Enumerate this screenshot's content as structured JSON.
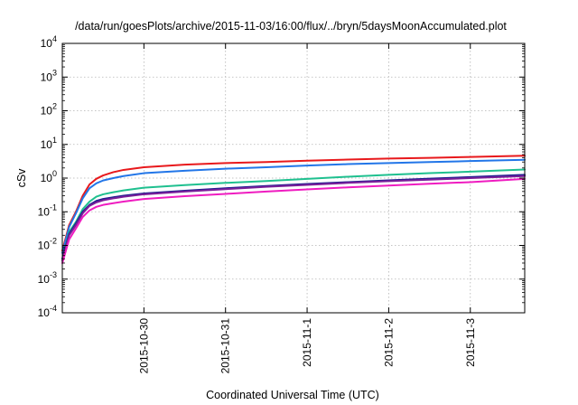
{
  "chart_data": {
    "type": "line",
    "title": "/data/run/goesPlots/archive/2015-11-03/16:00/flux/../bryn/5daysMoonAccumulated.plot",
    "xlabel": "Coordinated Universal Time (UTC)",
    "ylabel": "cSv",
    "y_scale": "log",
    "ylim": [
      0.0001,
      10000
    ],
    "xlim": [
      "2015-10-29 00:00",
      "2015-11-03 16:00"
    ],
    "grid": true,
    "legend": "none",
    "x_ticks": [
      "2015-10-30",
      "2015-10-31",
      "2015-11-1",
      "2015-11-2",
      "2015-11-3"
    ],
    "y_ticks": [
      {
        "value": 0.0001,
        "base": "10",
        "exp": "-4"
      },
      {
        "value": 0.001,
        "base": "10",
        "exp": "-3"
      },
      {
        "value": 0.01,
        "base": "10",
        "exp": "-2"
      },
      {
        "value": 0.1,
        "base": "10",
        "exp": "-1"
      },
      {
        "value": 1,
        "base": "10",
        "exp": "0"
      },
      {
        "value": 10,
        "base": "10",
        "exp": "1"
      },
      {
        "value": 100,
        "base": "10",
        "exp": "2"
      },
      {
        "value": 1000,
        "base": "10",
        "exp": "3"
      },
      {
        "value": 10000,
        "base": "10",
        "exp": "4"
      }
    ],
    "x": [
      "2015-10-29 00:00",
      "2015-10-29 02:00",
      "2015-10-29 04:00",
      "2015-10-29 06:00",
      "2015-10-29 08:00",
      "2015-10-29 10:00",
      "2015-10-29 12:00",
      "2015-10-29 15:00",
      "2015-10-29 18:00",
      "2015-10-30 00:00",
      "2015-10-30 12:00",
      "2015-10-31 00:00",
      "2015-10-31 12:00",
      "2015-11-01 00:00",
      "2015-11-01 12:00",
      "2015-11-02 00:00",
      "2015-11-02 12:00",
      "2015-11-03 00:00",
      "2015-11-03 16:00"
    ],
    "series": [
      {
        "color": "#e8191c",
        "values": [
          0.007,
          0.04,
          0.1,
          0.3,
          0.65,
          0.95,
          1.2,
          1.5,
          1.75,
          2.1,
          2.5,
          2.8,
          3.0,
          3.3,
          3.55,
          3.8,
          4.0,
          4.25,
          4.6
        ]
      },
      {
        "color": "#2276e8",
        "values": [
          0.006,
          0.035,
          0.09,
          0.25,
          0.5,
          0.7,
          0.85,
          1.0,
          1.15,
          1.4,
          1.65,
          1.9,
          2.1,
          2.35,
          2.6,
          2.8,
          3.0,
          3.2,
          3.5
        ]
      },
      {
        "color": "#1fc08f",
        "values": [
          0.004,
          0.025,
          0.05,
          0.12,
          0.2,
          0.28,
          0.33,
          0.38,
          0.43,
          0.52,
          0.62,
          0.72,
          0.82,
          0.95,
          1.1,
          1.25,
          1.4,
          1.55,
          1.8
        ]
      },
      {
        "color": "#1f1f8f",
        "values": [
          0.004,
          0.022,
          0.045,
          0.1,
          0.16,
          0.21,
          0.24,
          0.27,
          0.3,
          0.35,
          0.42,
          0.5,
          0.58,
          0.67,
          0.76,
          0.86,
          0.96,
          1.07,
          1.25
        ]
      },
      {
        "color": "#7a1e9a",
        "values": [
          0.0035,
          0.02,
          0.04,
          0.09,
          0.15,
          0.19,
          0.22,
          0.25,
          0.28,
          0.33,
          0.4,
          0.47,
          0.55,
          0.63,
          0.72,
          0.81,
          0.9,
          1.0,
          1.15
        ]
      },
      {
        "color": "#ef1cc0",
        "values": [
          0.003,
          0.015,
          0.032,
          0.07,
          0.11,
          0.14,
          0.16,
          0.18,
          0.2,
          0.24,
          0.29,
          0.34,
          0.4,
          0.46,
          0.53,
          0.6,
          0.68,
          0.76,
          0.95
        ]
      }
    ]
  }
}
